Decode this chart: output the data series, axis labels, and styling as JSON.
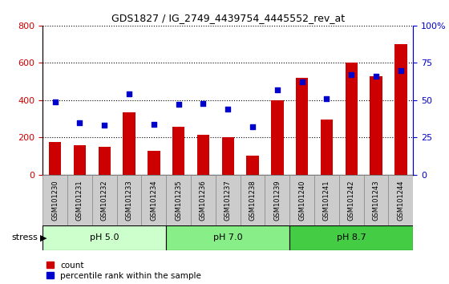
{
  "title": "GDS1827 / IG_2749_4439754_4445552_rev_at",
  "samples": [
    "GSM101230",
    "GSM101231",
    "GSM101232",
    "GSM101233",
    "GSM101234",
    "GSM101235",
    "GSM101236",
    "GSM101237",
    "GSM101238",
    "GSM101239",
    "GSM101240",
    "GSM101241",
    "GSM101242",
    "GSM101243",
    "GSM101244"
  ],
  "counts": [
    175,
    160,
    150,
    335,
    130,
    255,
    215,
    200,
    100,
    400,
    520,
    295,
    600,
    530,
    700
  ],
  "percentile_ranks": [
    49,
    35,
    33,
    54,
    34,
    47,
    48,
    44,
    32,
    57,
    62,
    51,
    67,
    66,
    70
  ],
  "bar_color": "#cc0000",
  "dot_color": "#0000cc",
  "ylim_left": [
    0,
    800
  ],
  "ylim_right": [
    0,
    100
  ],
  "yticks_left": [
    0,
    200,
    400,
    600,
    800
  ],
  "yticks_right": [
    0,
    25,
    50,
    75,
    100
  ],
  "groups": [
    {
      "label": "pH 5.0",
      "start": 0,
      "end": 5,
      "color": "#ccffcc"
    },
    {
      "label": "pH 7.0",
      "start": 5,
      "end": 10,
      "color": "#88ee88"
    },
    {
      "label": "pH 8.7",
      "start": 10,
      "end": 15,
      "color": "#44cc44"
    }
  ],
  "stress_label": "stress",
  "background_color": "#ffffff",
  "plot_bg_color": "#ffffff",
  "tick_bg_color": "#cccccc",
  "grid_color": "#000000",
  "right_axis_color": "#0000cc",
  "left_axis_color": "#cc0000",
  "legend_items": [
    "count",
    "percentile rank within the sample"
  ]
}
